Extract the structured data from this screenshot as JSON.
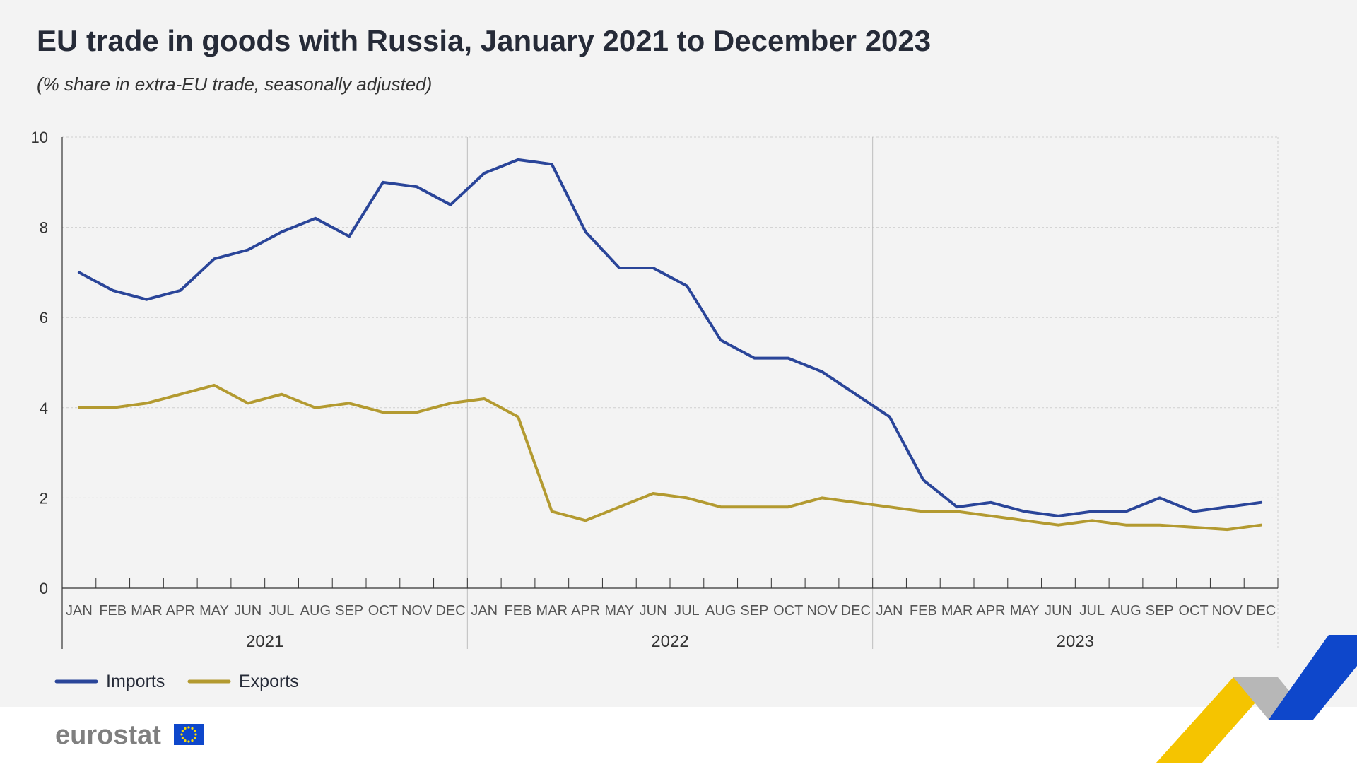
{
  "chart_data": {
    "type": "line",
    "title": "EU trade in goods with Russia, January 2021 to December 2023",
    "subtitle": "(% share in extra-EU trade, seasonally adjusted)",
    "months": [
      "JAN",
      "FEB",
      "MAR",
      "APR",
      "MAY",
      "JUN",
      "JUL",
      "AUG",
      "SEP",
      "OCT",
      "NOV",
      "DEC"
    ],
    "years": [
      "2021",
      "2022",
      "2023"
    ],
    "ylim": [
      0,
      10
    ],
    "yticks": [
      "0",
      "2",
      "4",
      "6",
      "8",
      "10"
    ],
    "grid": true,
    "legend_position": "bottom-left",
    "series": [
      {
        "name": "Imports",
        "color": "#2a4599",
        "values": [
          7.0,
          6.6,
          6.4,
          6.6,
          7.3,
          7.5,
          7.9,
          8.2,
          7.8,
          9.0,
          8.9,
          8.5,
          9.2,
          9.5,
          9.4,
          7.9,
          7.1,
          7.1,
          6.7,
          5.5,
          5.1,
          5.1,
          4.8,
          4.3,
          3.8,
          2.4,
          1.8,
          1.9,
          1.7,
          1.6,
          1.7,
          1.7,
          2.0,
          1.7,
          1.8,
          1.9
        ]
      },
      {
        "name": "Exports",
        "color": "#b39a30",
        "values": [
          4.0,
          4.0,
          4.1,
          4.3,
          4.5,
          4.1,
          4.3,
          4.0,
          4.1,
          3.9,
          3.9,
          4.1,
          4.2,
          3.8,
          1.7,
          1.5,
          1.8,
          2.1,
          2.0,
          1.8,
          1.8,
          1.8,
          2.0,
          1.9,
          1.8,
          1.7,
          1.7,
          1.6,
          1.5,
          1.4,
          1.5,
          1.4,
          1.4,
          1.35,
          1.3,
          1.4
        ]
      }
    ]
  },
  "branding": {
    "logo_text": "eurostat",
    "accent_blue": "#0e47cb",
    "accent_yellow": "#f5c400",
    "accent_grey": "#b7b7b7"
  }
}
